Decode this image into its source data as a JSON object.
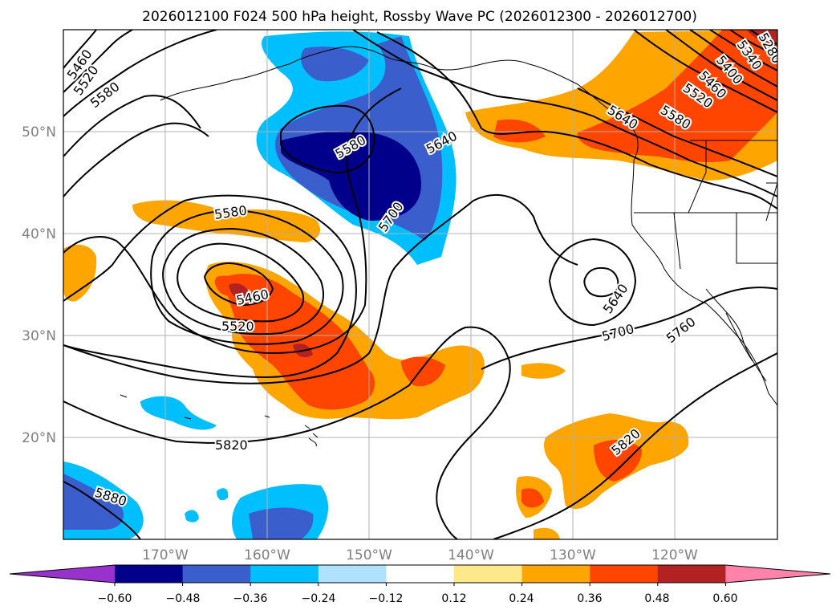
{
  "title": "2026012100 F024 500 hPa height, Rossby Wave PC (2026012300 - 2026012700)",
  "lat_labels": [
    "50°N",
    "40°N",
    "30°N",
    "20°N"
  ],
  "lon_labels": [
    "170°W",
    "160°W",
    "150°W",
    "140°W",
    "130°W",
    "120°W"
  ],
  "contour_labels": [
    "5460",
    "5520",
    "5580",
    "5580",
    "5580",
    "5640",
    "5700",
    "5640",
    "5580",
    "5520",
    "5460",
    "5400",
    "5340",
    "5280",
    "5460",
    "5520",
    "5700",
    "5640",
    "5760",
    "5820",
    "5820",
    "5880"
  ],
  "colorbar": {
    "ticks": [
      "−0.60",
      "−0.48",
      "−0.36",
      "−0.24",
      "−0.12",
      "0.12",
      "0.24",
      "0.36",
      "0.48",
      "0.60"
    ],
    "colors": [
      "#9932cc",
      "#00008b",
      "#3a5fcd",
      "#00bfff",
      "#b0e2ff",
      "#ffffff",
      "#ffe88a",
      "#ffa500",
      "#ff4500",
      "#b22222",
      "#ff82ab"
    ]
  }
}
